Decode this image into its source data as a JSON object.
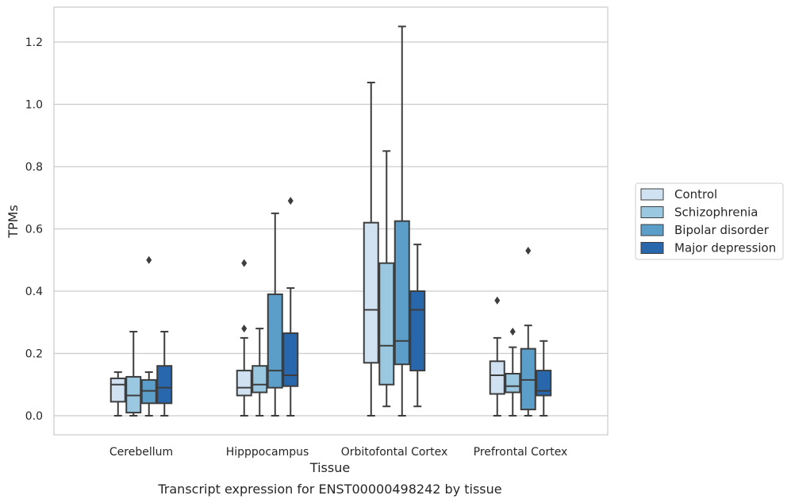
{
  "caption": "Transcript expression for ENST00000498242 by tissue",
  "chart_data": {
    "type": "boxplot",
    "xlabel": "Tissue",
    "ylabel": "TPMs",
    "ylim": [
      -0.06,
      1.31
    ],
    "yticks": [
      "0.0",
      "0.2",
      "0.4",
      "0.6",
      "0.8",
      "1.0",
      "1.2"
    ],
    "categories": [
      "Cerebellum",
      "Hipppocampus",
      "Orbitofontal Cortex",
      "Prefrontal Cortex"
    ],
    "grid": "horizontal",
    "legend_position": "right",
    "series": [
      {
        "name": "Control",
        "color": "#d0e1f2",
        "boxes": [
          {
            "whislo": 0.0,
            "q1": 0.045,
            "med": 0.1,
            "q3": 0.12,
            "whishi": 0.14,
            "fliers": []
          },
          {
            "whislo": 0.0,
            "q1": 0.065,
            "med": 0.09,
            "q3": 0.145,
            "whishi": 0.25,
            "fliers": [
              0.28,
              0.49
            ]
          },
          {
            "whislo": 0.0,
            "q1": 0.17,
            "med": 0.34,
            "q3": 0.62,
            "whishi": 1.07,
            "fliers": []
          },
          {
            "whislo": 0.0,
            "q1": 0.07,
            "med": 0.13,
            "q3": 0.175,
            "whishi": 0.25,
            "fliers": [
              0.37
            ]
          }
        ]
      },
      {
        "name": "Schizophrenia",
        "color": "#9ac8e0",
        "boxes": [
          {
            "whislo": 0.0,
            "q1": 0.01,
            "med": 0.065,
            "q3": 0.125,
            "whishi": 0.27,
            "fliers": []
          },
          {
            "whislo": 0.0,
            "q1": 0.075,
            "med": 0.1,
            "q3": 0.16,
            "whishi": 0.28,
            "fliers": []
          },
          {
            "whislo": 0.03,
            "q1": 0.1,
            "med": 0.225,
            "q3": 0.49,
            "whishi": 0.85,
            "fliers": []
          },
          {
            "whislo": 0.0,
            "q1": 0.075,
            "med": 0.095,
            "q3": 0.135,
            "whishi": 0.22,
            "fliers": [
              0.27
            ]
          }
        ]
      },
      {
        "name": "Bipolar disorder",
        "color": "#5a9ec9",
        "boxes": [
          {
            "whislo": 0.0,
            "q1": 0.04,
            "med": 0.08,
            "q3": 0.115,
            "whishi": 0.14,
            "fliers": [
              0.5
            ]
          },
          {
            "whislo": 0.0,
            "q1": 0.09,
            "med": 0.145,
            "q3": 0.39,
            "whishi": 0.65,
            "fliers": []
          },
          {
            "whislo": 0.0,
            "q1": 0.165,
            "med": 0.24,
            "q3": 0.625,
            "whishi": 1.25,
            "fliers": []
          },
          {
            "whislo": 0.0,
            "q1": 0.02,
            "med": 0.115,
            "q3": 0.215,
            "whishi": 0.29,
            "fliers": [
              0.53
            ]
          }
        ]
      },
      {
        "name": "Major depression",
        "color": "#2967ac",
        "boxes": [
          {
            "whislo": 0.0,
            "q1": 0.04,
            "med": 0.09,
            "q3": 0.16,
            "whishi": 0.27,
            "fliers": []
          },
          {
            "whislo": 0.0,
            "q1": 0.095,
            "med": 0.13,
            "q3": 0.265,
            "whishi": 0.41,
            "fliers": [
              0.69
            ]
          },
          {
            "whislo": 0.03,
            "q1": 0.145,
            "med": 0.34,
            "q3": 0.4,
            "whishi": 0.55,
            "fliers": []
          },
          {
            "whislo": 0.0,
            "q1": 0.065,
            "med": 0.08,
            "q3": 0.145,
            "whishi": 0.24,
            "fliers": []
          }
        ]
      }
    ]
  }
}
